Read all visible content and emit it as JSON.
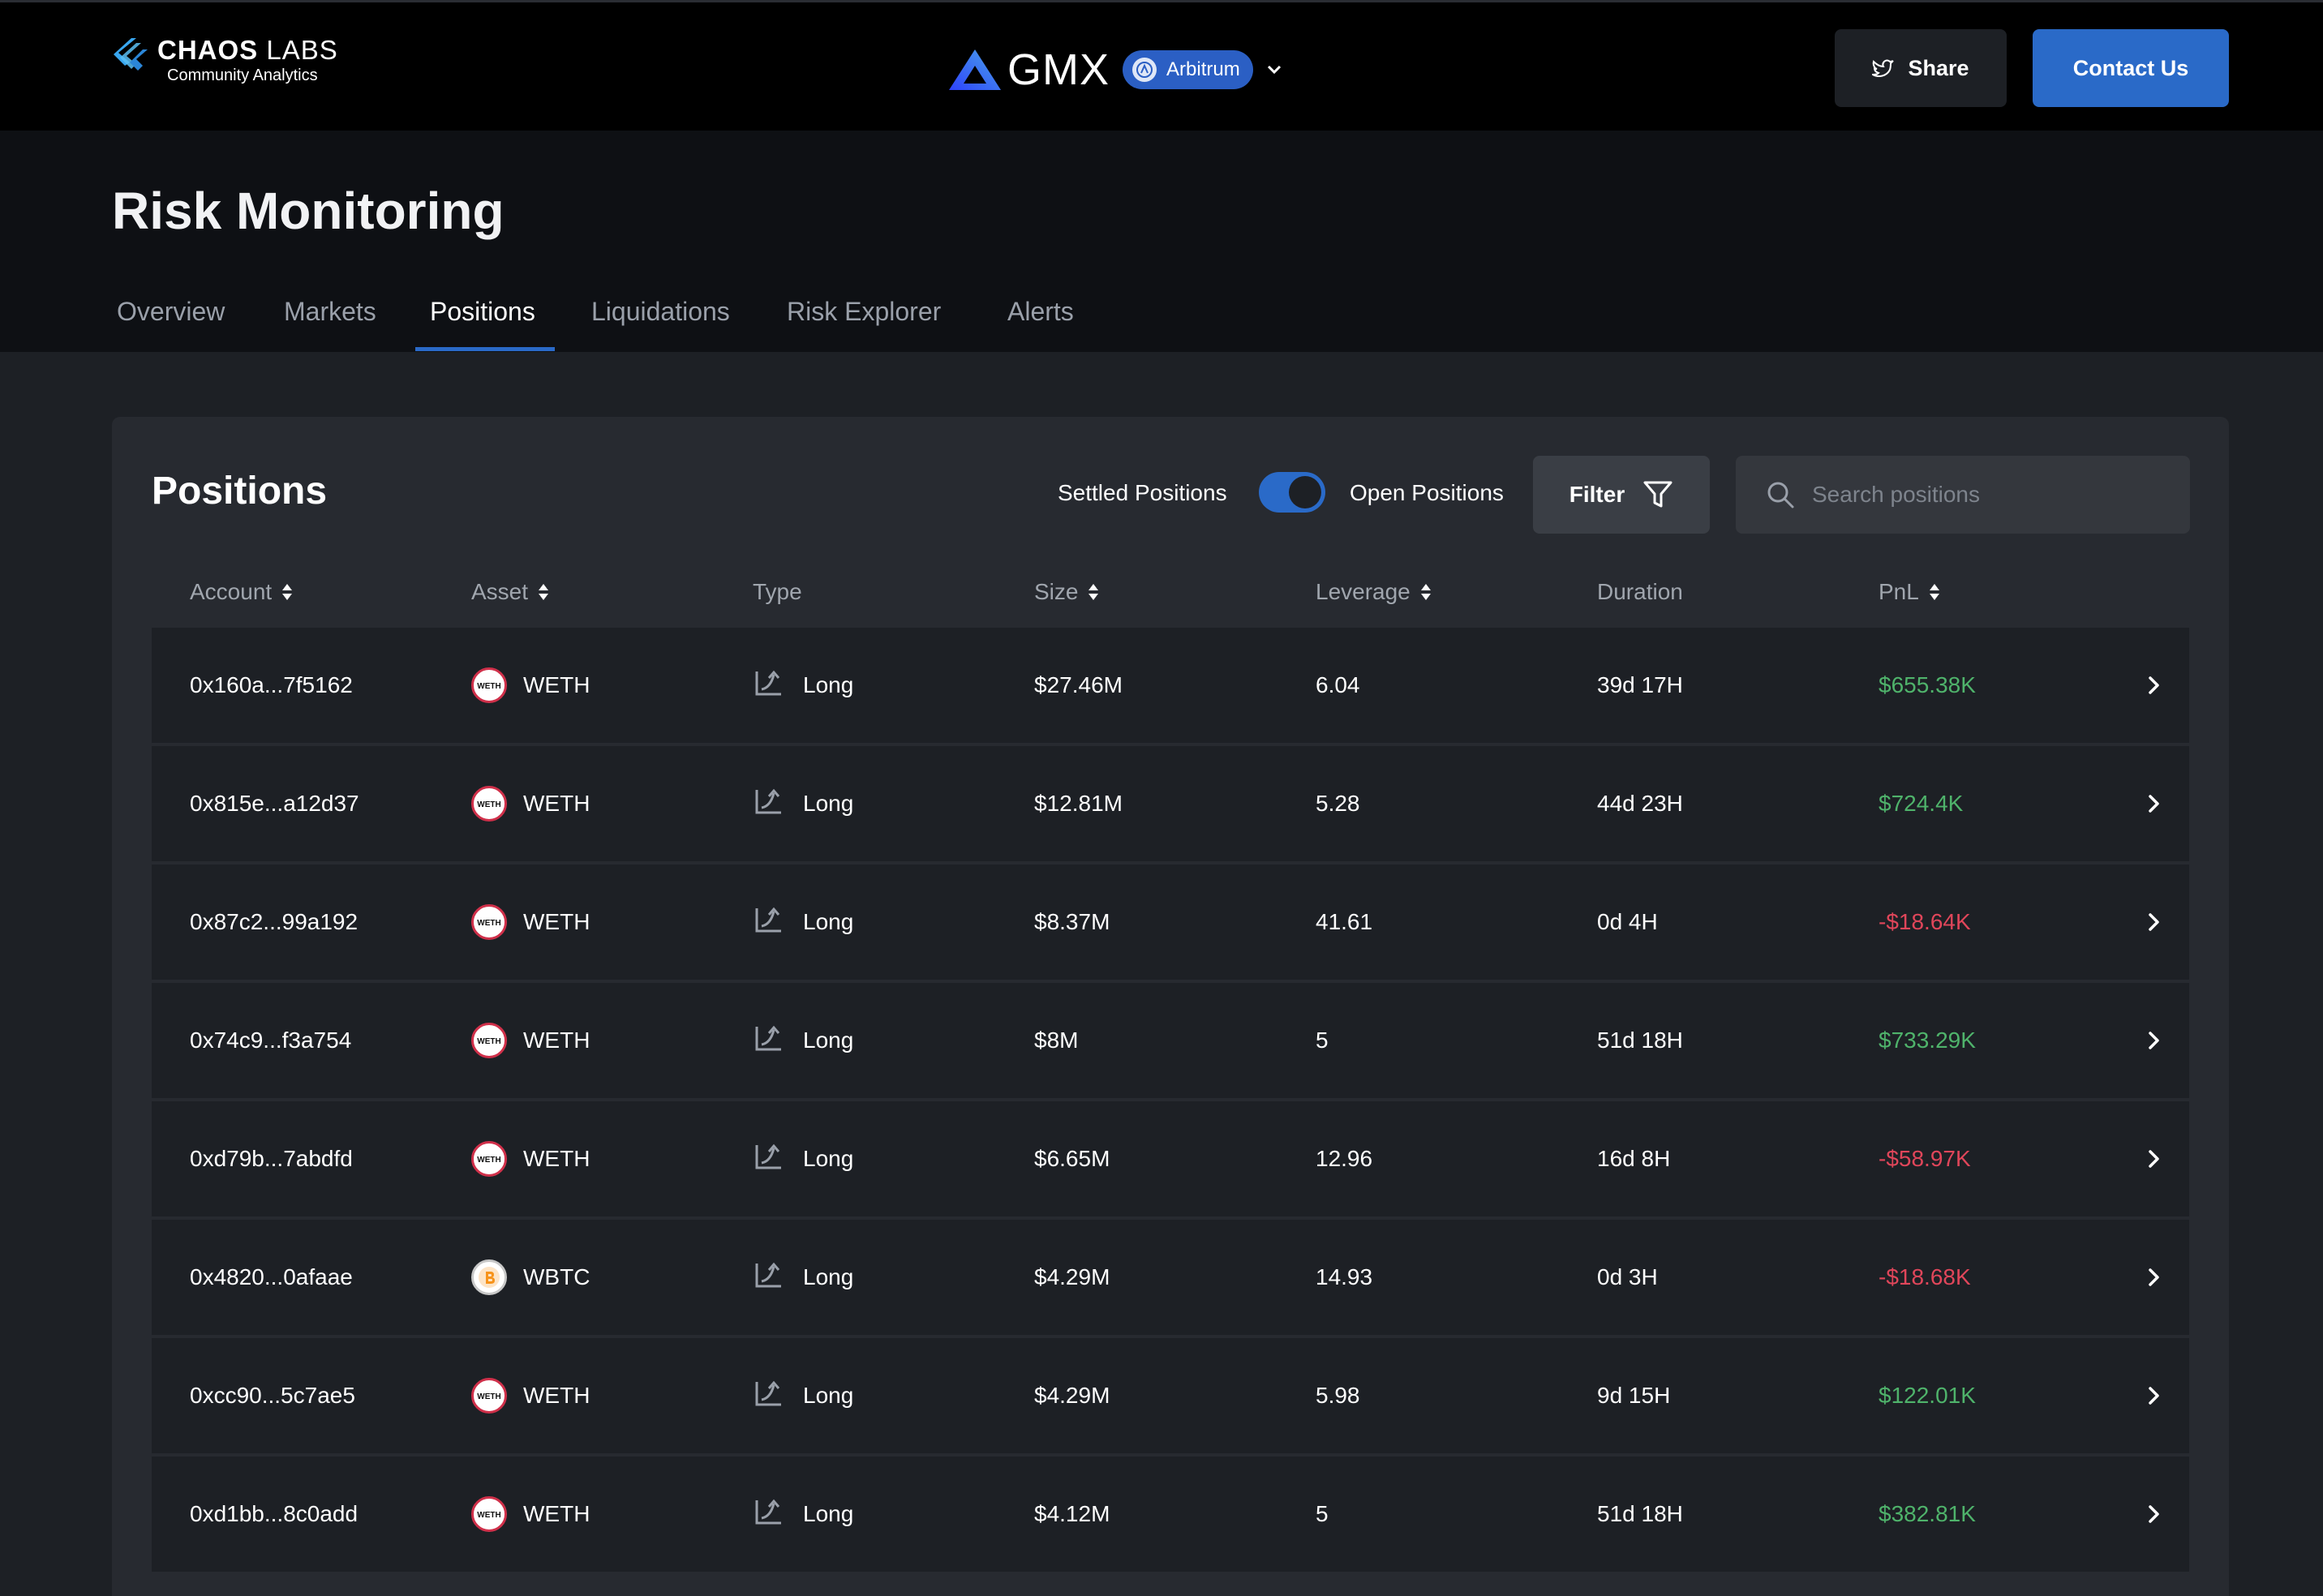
{
  "brand": {
    "logo_title_bold": "CHAOS",
    "logo_title_thin": "LABS",
    "logo_subtitle": "Community Analytics",
    "protocol": "GMX",
    "chain": "Arbitrum"
  },
  "actions": {
    "share_label": "Share",
    "contact_label": "Contact Us"
  },
  "page": {
    "title": "Risk Monitoring",
    "tabs": [
      {
        "label": "Overview",
        "active": false
      },
      {
        "label": "Markets",
        "active": false
      },
      {
        "label": "Positions",
        "active": true
      },
      {
        "label": "Liquidations",
        "active": false
      },
      {
        "label": "Risk Explorer",
        "active": false
      },
      {
        "label": "Alerts",
        "active": false
      }
    ]
  },
  "positions": {
    "title": "Positions",
    "toggle_left": "Settled Positions",
    "toggle_right": "Open Positions",
    "toggle_on": true,
    "filter_label": "Filter",
    "search_placeholder": "Search positions",
    "columns": [
      "Account",
      "Asset",
      "Type",
      "Size",
      "Leverage",
      "Duration",
      "PnL"
    ],
    "rows": [
      {
        "account": "0x160a...7f5162",
        "asset": "WETH",
        "type": "Long",
        "size": "$27.46M",
        "leverage": "6.04",
        "duration": "39d 17H",
        "pnl": "$655.38K",
        "pnl_sign": "pos"
      },
      {
        "account": "0x815e...a12d37",
        "asset": "WETH",
        "type": "Long",
        "size": "$12.81M",
        "leverage": "5.28",
        "duration": "44d 23H",
        "pnl": "$724.4K",
        "pnl_sign": "pos"
      },
      {
        "account": "0x87c2...99a192",
        "asset": "WETH",
        "type": "Long",
        "size": "$8.37M",
        "leverage": "41.61",
        "duration": "0d 4H",
        "pnl": "-$18.64K",
        "pnl_sign": "neg"
      },
      {
        "account": "0x74c9...f3a754",
        "asset": "WETH",
        "type": "Long",
        "size": "$8M",
        "leverage": "5",
        "duration": "51d 18H",
        "pnl": "$733.29K",
        "pnl_sign": "pos"
      },
      {
        "account": "0xd79b...7abdfd",
        "asset": "WETH",
        "type": "Long",
        "size": "$6.65M",
        "leverage": "12.96",
        "duration": "16d 8H",
        "pnl": "-$58.97K",
        "pnl_sign": "neg"
      },
      {
        "account": "0x4820...0afaae",
        "asset": "WBTC",
        "type": "Long",
        "size": "$4.29M",
        "leverage": "14.93",
        "duration": "0d 3H",
        "pnl": "-$18.68K",
        "pnl_sign": "neg"
      },
      {
        "account": "0xcc90...5c7ae5",
        "asset": "WETH",
        "type": "Long",
        "size": "$4.29M",
        "leverage": "5.98",
        "duration": "9d 15H",
        "pnl": "$122.01K",
        "pnl_sign": "pos"
      },
      {
        "account": "0xd1bb...8c0add",
        "asset": "WETH",
        "type": "Long",
        "size": "$4.12M",
        "leverage": "5",
        "duration": "51d 18H",
        "pnl": "$382.81K",
        "pnl_sign": "pos"
      }
    ]
  },
  "colors": {
    "accent": "#2a6ac8",
    "positive": "#4fb36b",
    "negative": "#e0465a"
  },
  "icons": [
    "chaos-labs-logo-icon",
    "gmx-logo-icon",
    "arbitrum-icon",
    "chevron-down-icon",
    "twitter-icon",
    "filter-icon",
    "search-icon",
    "sort-icon",
    "weth-icon",
    "wbtc-icon",
    "long-trend-icon",
    "chevron-right-icon"
  ]
}
